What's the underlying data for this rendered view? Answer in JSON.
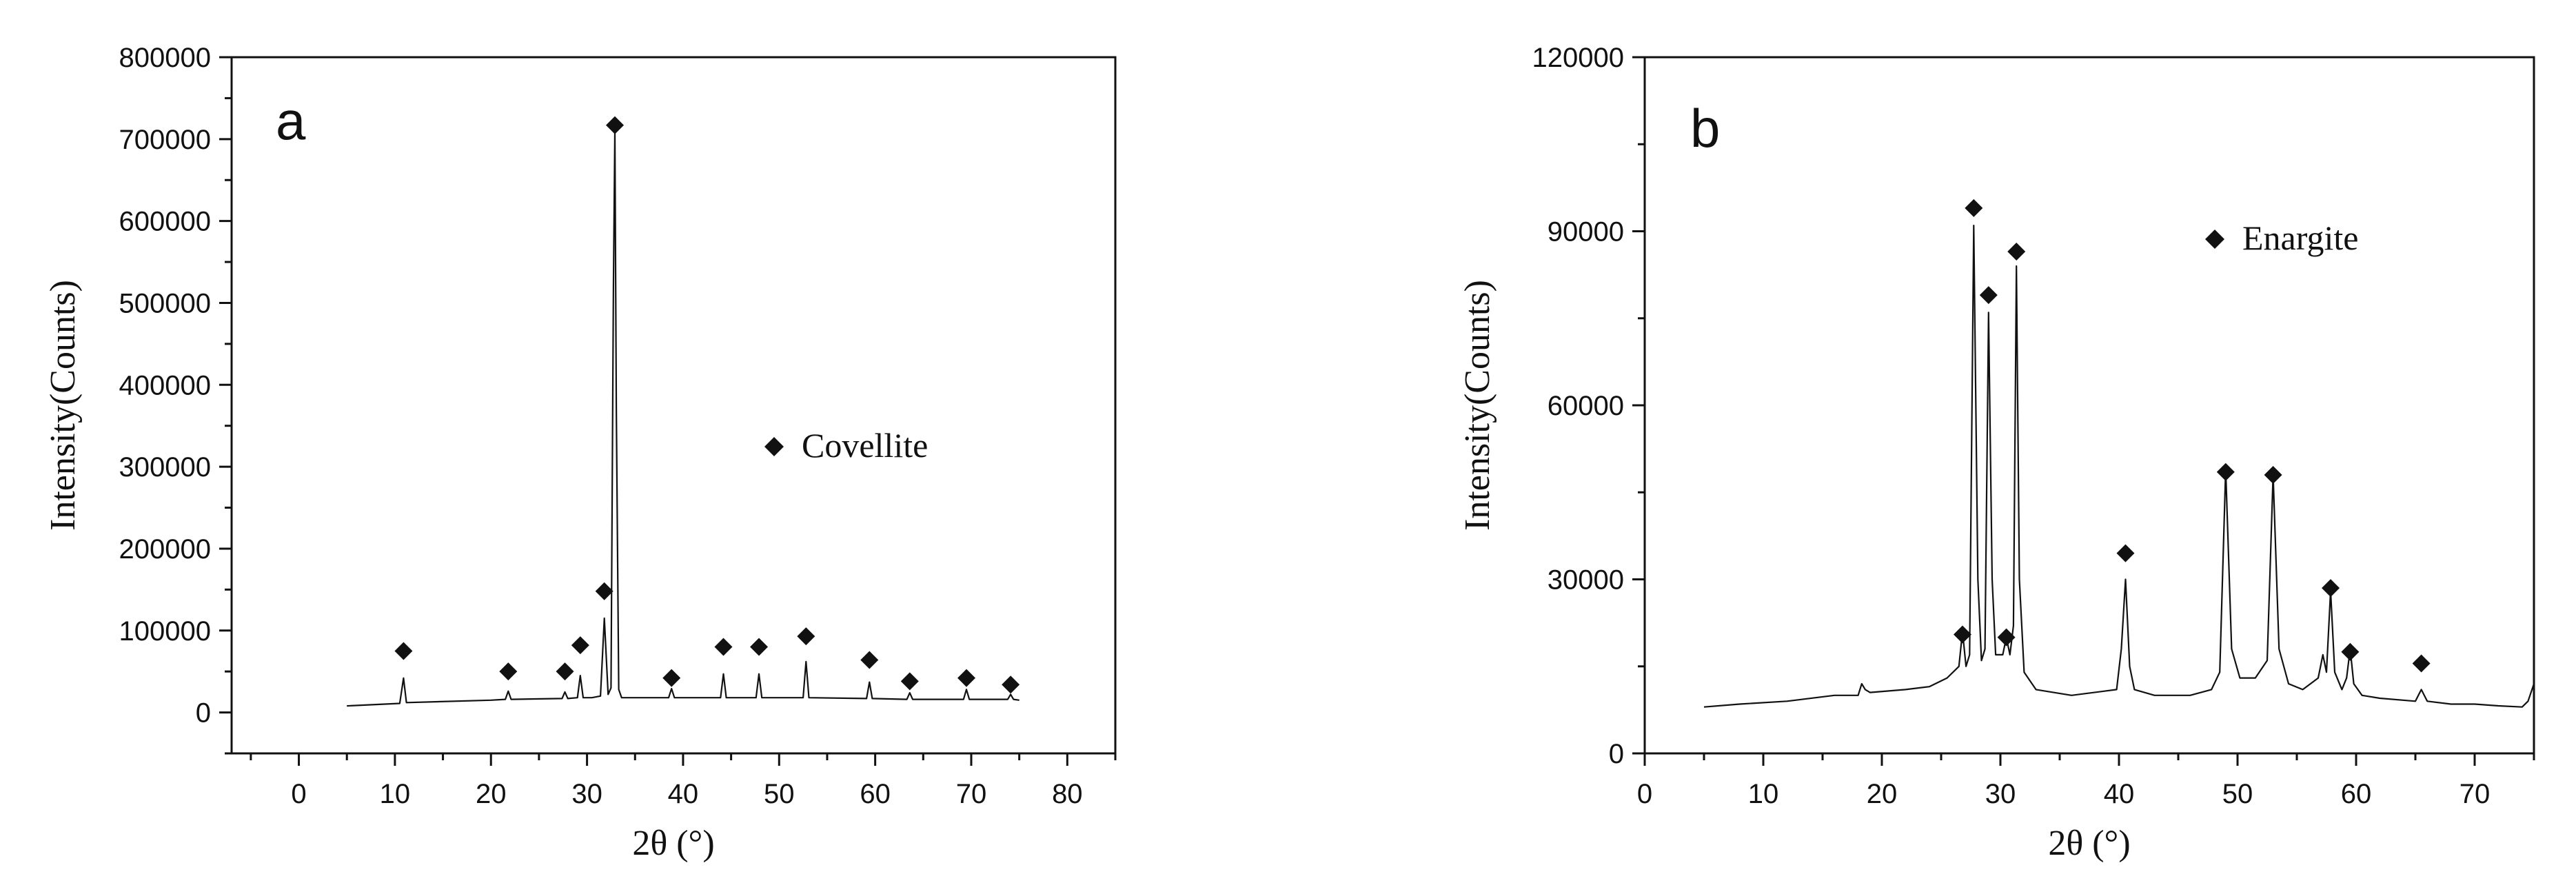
{
  "chart_data": [
    {
      "type": "line",
      "panel_label": "a",
      "xlabel": "2θ (°)",
      "ylabel": "Intensity(Counts)",
      "xlim": [
        -7,
        85
      ],
      "ylim": [
        -50000,
        800000
      ],
      "xticks": [
        "0",
        "10",
        "20",
        "30",
        "40",
        "50",
        "60",
        "70",
        "80"
      ],
      "yticks": [
        "0",
        "100000",
        "200000",
        "300000",
        "400000",
        "500000",
        "600000",
        "700000",
        "800000"
      ],
      "legend": {
        "label": "Covellite",
        "marker": "diamond",
        "position": "center-right"
      },
      "series": [
        {
          "x": [
            5,
            10.5,
            10.9,
            11.2,
            20,
            21.5,
            21.8,
            22.1,
            27.4,
            27.7,
            28.0,
            29.0,
            29.3,
            29.6,
            30.5,
            31.4,
            31.8,
            32.2,
            32.5,
            32.75,
            32.9,
            33.05,
            33.3,
            33.6,
            38.5,
            38.8,
            39.1,
            43.9,
            44.2,
            44.5,
            47.6,
            47.9,
            48.2,
            52.5,
            52.8,
            53.1,
            59.1,
            59.4,
            59.7,
            63.3,
            63.6,
            63.9,
            69.2,
            69.5,
            69.8,
            73.8,
            74.1,
            74.4,
            75
          ],
          "y": [
            8000,
            11000,
            42000,
            12000,
            15000,
            16000,
            26000,
            16000,
            17000,
            25000,
            17000,
            18000,
            45000,
            18000,
            18000,
            20000,
            115000,
            22000,
            30000,
            520000,
            710000,
            370000,
            28000,
            18000,
            18000,
            29000,
            18000,
            18000,
            47000,
            18000,
            18000,
            47000,
            18000,
            18000,
            62000,
            18000,
            17000,
            37000,
            17000,
            16000,
            24000,
            16000,
            16000,
            28000,
            16000,
            16000,
            22000,
            16000,
            15000
          ]
        }
      ],
      "peak_markers": [
        {
          "x": 10.9,
          "y": 75000
        },
        {
          "x": 21.8,
          "y": 50000
        },
        {
          "x": 27.7,
          "y": 50000
        },
        {
          "x": 29.3,
          "y": 82000
        },
        {
          "x": 31.8,
          "y": 148000
        },
        {
          "x": 32.9,
          "y": 717000
        },
        {
          "x": 38.8,
          "y": 42000
        },
        {
          "x": 44.2,
          "y": 80000
        },
        {
          "x": 47.9,
          "y": 80000
        },
        {
          "x": 52.8,
          "y": 93000
        },
        {
          "x": 59.4,
          "y": 64000
        },
        {
          "x": 63.6,
          "y": 38000
        },
        {
          "x": 69.5,
          "y": 42000
        },
        {
          "x": 74.1,
          "y": 34000
        }
      ]
    },
    {
      "type": "line",
      "panel_label": "b",
      "xlabel": "2θ (°)",
      "ylabel": "Intensity(Counts)",
      "xlim": [
        0,
        75
      ],
      "ylim": [
        0,
        120000
      ],
      "xticks": [
        "0",
        "10",
        "20",
        "30",
        "40",
        "50",
        "60",
        "70"
      ],
      "yticks": [
        "0",
        "30000",
        "60000",
        "90000",
        "120000"
      ],
      "legend": {
        "label": "Enargite",
        "marker": "diamond",
        "position": "top-right"
      },
      "series": [
        {
          "x": [
            5,
            8,
            12,
            16,
            18,
            18.3,
            18.6,
            19,
            22,
            24,
            25.5,
            26.5,
            26.8,
            27.1,
            27.4,
            27.75,
            28.1,
            28.4,
            28.7,
            29.0,
            29.3,
            29.6,
            30.2,
            30.5,
            30.8,
            31.1,
            31.35,
            31.6,
            32,
            33,
            36,
            39.8,
            40.2,
            40.55,
            40.9,
            41.3,
            43,
            46,
            47.8,
            48.5,
            49.0,
            49.5,
            50.2,
            51.5,
            52.5,
            53.0,
            53.5,
            54.3,
            55.5,
            56.8,
            57.2,
            57.5,
            57.85,
            58.2,
            58.8,
            59.2,
            59.5,
            59.8,
            60.5,
            62,
            65,
            65.5,
            66,
            68,
            70,
            72,
            74,
            74.5,
            75
          ],
          "y": [
            8000,
            8500,
            9000,
            10000,
            10000,
            12000,
            11000,
            10500,
            11000,
            11500,
            13000,
            15000,
            21000,
            15000,
            17000,
            91000,
            30000,
            16000,
            18000,
            76000,
            30000,
            17000,
            17000,
            20000,
            17000,
            22000,
            84000,
            30000,
            14000,
            11000,
            10000,
            11000,
            18000,
            30000,
            15000,
            11000,
            10000,
            10000,
            11000,
            14000,
            49000,
            18000,
            13000,
            13000,
            16000,
            48000,
            18000,
            12000,
            11000,
            13000,
            17000,
            14000,
            28000,
            14000,
            11000,
            13000,
            18000,
            12000,
            10000,
            9500,
            9000,
            11000,
            9000,
            8500,
            8500,
            8200,
            8000,
            9000,
            12000
          ]
        }
      ],
      "peak_markers": [
        {
          "x": 26.8,
          "y": 20500
        },
        {
          "x": 27.75,
          "y": 94000
        },
        {
          "x": 29.0,
          "y": 79000
        },
        {
          "x": 30.5,
          "y": 20000
        },
        {
          "x": 31.35,
          "y": 86500
        },
        {
          "x": 40.55,
          "y": 34500
        },
        {
          "x": 49.0,
          "y": 48500
        },
        {
          "x": 53.0,
          "y": 48000
        },
        {
          "x": 57.85,
          "y": 28500
        },
        {
          "x": 59.5,
          "y": 17500
        },
        {
          "x": 65.5,
          "y": 15500
        }
      ]
    }
  ]
}
